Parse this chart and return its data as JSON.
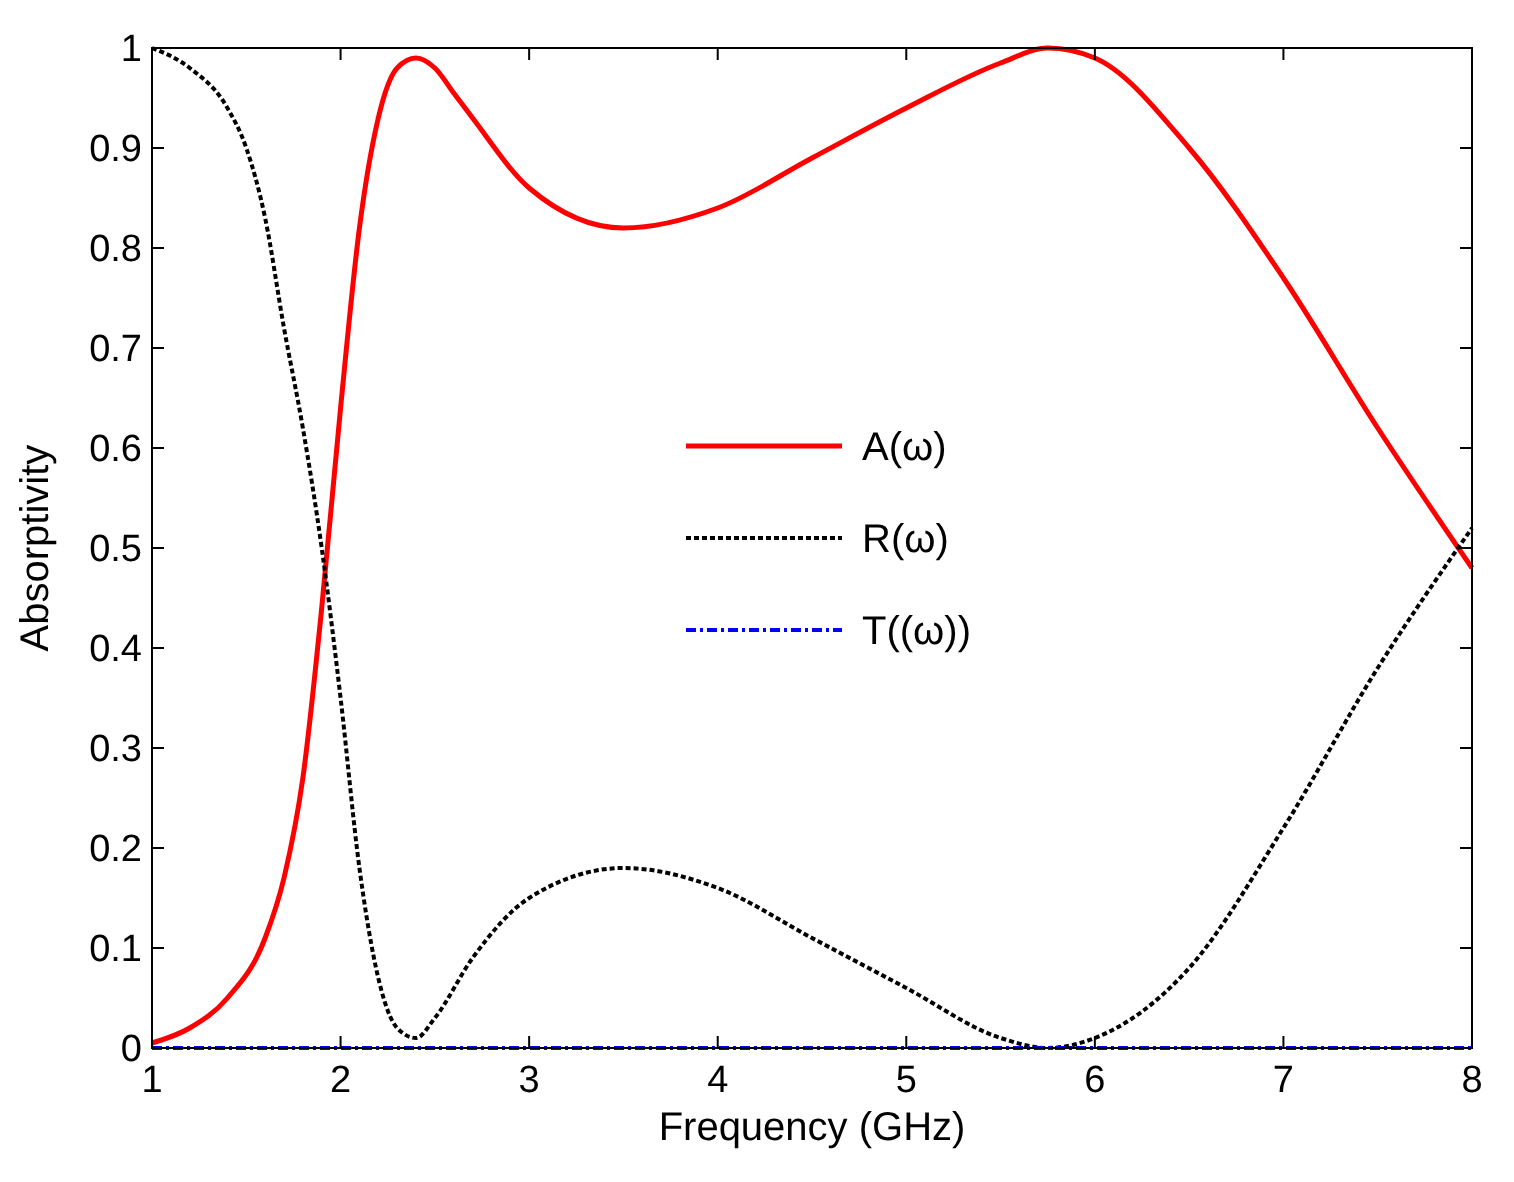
{
  "chart_data": {
    "type": "line",
    "xlabel": "Frequency (GHz)",
    "ylabel": "Absorptivity",
    "xlim": [
      1,
      8
    ],
    "ylim": [
      0,
      1
    ],
    "xticks": [
      1,
      2,
      3,
      4,
      5,
      6,
      7,
      8
    ],
    "yticks": [
      0,
      0.1,
      0.2,
      0.3,
      0.4,
      0.5,
      0.6,
      0.7,
      0.8,
      0.9,
      1
    ],
    "grid": false,
    "legend": "center",
    "series": [
      {
        "name": "A(ω)",
        "color": "#ff0000",
        "line_style": "solid",
        "x": [
          1,
          1.2,
          1.4,
          1.6,
          1.7,
          1.8,
          1.9,
          2,
          2.1,
          2.2,
          2.3,
          2.4,
          2.5,
          2.6,
          2.7,
          3,
          3.5,
          4,
          4.5,
          5,
          5.5,
          5.75,
          6,
          6.5,
          7,
          7.5,
          8
        ],
        "values": [
          0.005,
          0.02,
          0.05,
          0.11,
          0.17,
          0.27,
          0.44,
          0.64,
          0.82,
          0.93,
          0.98,
          0.99,
          0.98,
          0.955,
          0.93,
          0.86,
          0.82,
          0.84,
          0.89,
          0.94,
          0.985,
          1,
          0.99,
          0.9,
          0.77,
          0.62,
          0.48
        ]
      },
      {
        "name": "R(ω)",
        "color": "#000000",
        "line_style": "dotted",
        "x": [
          1,
          1.2,
          1.4,
          1.5,
          1.6,
          1.7,
          1.8,
          1.9,
          2,
          2.1,
          2.2,
          2.3,
          2.4,
          2.5,
          2.7,
          3,
          3.5,
          4,
          4.5,
          5,
          5.5,
          5.75,
          6,
          6.5,
          7,
          7.5,
          8
        ],
        "values": [
          1,
          0.98,
          0.94,
          0.9,
          0.83,
          0.72,
          0.62,
          0.5,
          0.35,
          0.18,
          0.07,
          0.02,
          0.01,
          0.03,
          0.09,
          0.15,
          0.18,
          0.16,
          0.11,
          0.06,
          0.01,
          0,
          0.01,
          0.08,
          0.22,
          0.38,
          0.52
        ]
      },
      {
        "name": "T((ω))",
        "color": "#0000ff",
        "line_style": "dashed",
        "x": [
          1,
          8
        ],
        "values": [
          0,
          0
        ]
      }
    ]
  }
}
